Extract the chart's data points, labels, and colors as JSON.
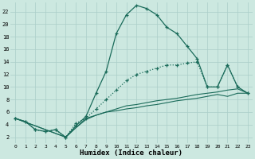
{
  "bg_color": "#cce8e0",
  "grid_color": "#aacec8",
  "line_color": "#1a6b5a",
  "xlabel": "Humidex (Indice chaleur)",
  "xlim": [
    -0.5,
    23.5
  ],
  "ylim": [
    1,
    23.5
  ],
  "yticks": [
    2,
    4,
    6,
    8,
    10,
    12,
    14,
    16,
    18,
    20,
    22
  ],
  "xticks": [
    0,
    1,
    2,
    3,
    4,
    5,
    6,
    7,
    8,
    9,
    10,
    11,
    12,
    13,
    14,
    15,
    16,
    17,
    18,
    19,
    20,
    21,
    22,
    23
  ],
  "curve1": [
    [
      0,
      5.0
    ],
    [
      1,
      4.5
    ],
    [
      2,
      3.2
    ],
    [
      3,
      2.9
    ],
    [
      4,
      3.2
    ],
    [
      5,
      2.0
    ],
    [
      6,
      3.8
    ],
    [
      7,
      5.3
    ],
    [
      8,
      9.0
    ],
    [
      9,
      12.5
    ],
    [
      10,
      18.5
    ],
    [
      11,
      21.5
    ],
    [
      12,
      23.0
    ],
    [
      13,
      22.5
    ],
    [
      14,
      21.5
    ],
    [
      15,
      19.5
    ],
    [
      16,
      18.5
    ],
    [
      17,
      16.5
    ],
    [
      18,
      14.5
    ],
    [
      19,
      10.0
    ],
    [
      20,
      10.0
    ],
    [
      21,
      13.5
    ],
    [
      22,
      10.0
    ],
    [
      23,
      9.0
    ]
  ],
  "curve2": [
    [
      0,
      5.0
    ],
    [
      1,
      4.5
    ],
    [
      2,
      3.2
    ],
    [
      3,
      2.9
    ],
    [
      4,
      3.2
    ],
    [
      5,
      2.0
    ],
    [
      6,
      4.2
    ],
    [
      7,
      5.0
    ],
    [
      8,
      6.5
    ],
    [
      9,
      8.0
    ],
    [
      10,
      9.5
    ],
    [
      11,
      11.0
    ],
    [
      12,
      12.0
    ],
    [
      13,
      12.5
    ],
    [
      14,
      13.0
    ],
    [
      15,
      13.5
    ],
    [
      16,
      13.5
    ],
    [
      17,
      13.8
    ],
    [
      18,
      14.0
    ],
    [
      19,
      10.0
    ],
    [
      20,
      10.0
    ],
    [
      21,
      13.5
    ],
    [
      22,
      10.0
    ],
    [
      23,
      9.0
    ]
  ],
  "curve3": [
    [
      0,
      5.0
    ],
    [
      5,
      2.0
    ],
    [
      6,
      3.5
    ],
    [
      7,
      4.8
    ],
    [
      8,
      5.5
    ],
    [
      9,
      6.0
    ],
    [
      10,
      6.5
    ],
    [
      11,
      7.0
    ],
    [
      12,
      7.2
    ],
    [
      13,
      7.5
    ],
    [
      14,
      7.8
    ],
    [
      15,
      8.0
    ],
    [
      16,
      8.2
    ],
    [
      17,
      8.5
    ],
    [
      18,
      8.8
    ],
    [
      19,
      9.0
    ],
    [
      20,
      9.2
    ],
    [
      21,
      9.5
    ],
    [
      22,
      9.7
    ],
    [
      23,
      9.0
    ]
  ],
  "curve4": [
    [
      0,
      5.0
    ],
    [
      5,
      2.0
    ],
    [
      6,
      3.5
    ],
    [
      7,
      5.0
    ],
    [
      8,
      5.5
    ],
    [
      9,
      6.0
    ],
    [
      10,
      6.2
    ],
    [
      11,
      6.5
    ],
    [
      12,
      6.7
    ],
    [
      13,
      7.0
    ],
    [
      14,
      7.2
    ],
    [
      15,
      7.5
    ],
    [
      16,
      7.8
    ],
    [
      17,
      8.0
    ],
    [
      18,
      8.2
    ],
    [
      19,
      8.5
    ],
    [
      20,
      8.8
    ],
    [
      21,
      8.5
    ],
    [
      22,
      9.0
    ],
    [
      23,
      9.0
    ]
  ]
}
